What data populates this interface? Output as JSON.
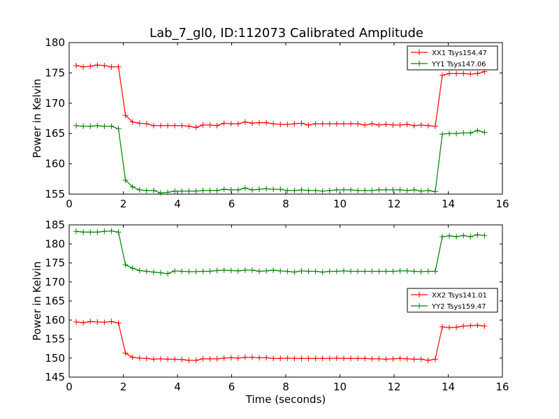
{
  "title": "Lab_7_gl0, ID:112073 Calibrated Amplitude",
  "colors": {
    "red": "#ff0000",
    "green": "#008000"
  },
  "chart_data": [
    {
      "type": "line",
      "ylabel": "Power in Kelvin",
      "xlabel": "",
      "xlim": [
        0,
        16
      ],
      "ylim": [
        155,
        180
      ],
      "x_ticks": [
        0,
        2,
        4,
        6,
        8,
        10,
        12,
        14,
        16
      ],
      "y_ticks": [
        155,
        160,
        165,
        170,
        175,
        180
      ],
      "legend_position": "top-right",
      "x": [
        0.26,
        0.52,
        0.78,
        1.04,
        1.3,
        1.56,
        1.82,
        2.08,
        2.34,
        2.6,
        2.86,
        3.12,
        3.38,
        3.64,
        3.9,
        4.16,
        4.42,
        4.68,
        4.94,
        5.2,
        5.46,
        5.72,
        5.98,
        6.24,
        6.5,
        6.76,
        7.02,
        7.28,
        7.54,
        7.8,
        8.06,
        8.32,
        8.58,
        8.84,
        9.1,
        9.36,
        9.62,
        9.88,
        10.14,
        10.4,
        10.66,
        10.92,
        11.18,
        11.44,
        11.7,
        11.96,
        12.22,
        12.48,
        12.74,
        13.0,
        13.26,
        13.52,
        13.78,
        14.04,
        14.3,
        14.56,
        14.82,
        15.08,
        15.34
      ],
      "series": [
        {
          "name": "XX1 Tsys154.47",
          "color": "#ff0000",
          "values": [
            176.2,
            176.0,
            176.1,
            176.3,
            176.2,
            176.0,
            176.0,
            168.0,
            166.9,
            166.7,
            166.6,
            166.3,
            166.3,
            166.3,
            166.3,
            166.3,
            166.2,
            166.0,
            166.4,
            166.4,
            166.3,
            166.7,
            166.6,
            166.6,
            166.9,
            166.7,
            166.8,
            166.8,
            166.6,
            166.5,
            166.5,
            166.6,
            166.7,
            166.4,
            166.6,
            166.6,
            166.6,
            166.6,
            166.6,
            166.6,
            166.6,
            166.4,
            166.6,
            166.4,
            166.5,
            166.4,
            166.4,
            166.5,
            166.3,
            166.4,
            166.3,
            166.2,
            174.6,
            174.9,
            174.9,
            174.9,
            174.8,
            174.9,
            175.2
          ]
        },
        {
          "name": "YY1 Tsys147.06",
          "color": "#008000",
          "values": [
            166.3,
            166.2,
            166.2,
            166.3,
            166.2,
            166.2,
            165.8,
            157.3,
            156.2,
            155.7,
            155.6,
            155.6,
            155.2,
            155.3,
            155.5,
            155.5,
            155.5,
            155.5,
            155.6,
            155.6,
            155.6,
            155.8,
            155.7,
            155.7,
            156.0,
            155.7,
            155.8,
            155.9,
            155.8,
            155.8,
            155.6,
            155.6,
            155.7,
            155.6,
            155.6,
            155.5,
            155.6,
            155.7,
            155.7,
            155.7,
            155.6,
            155.6,
            155.6,
            155.7,
            155.7,
            155.7,
            155.7,
            155.6,
            155.7,
            155.5,
            155.6,
            155.4,
            164.9,
            165.0,
            165.0,
            165.1,
            165.1,
            165.5,
            165.2
          ]
        }
      ]
    },
    {
      "type": "line",
      "ylabel": "Power in Kelvin",
      "xlabel": "Time (seconds)",
      "xlim": [
        0,
        16
      ],
      "ylim": [
        145,
        185
      ],
      "x_ticks": [
        0,
        2,
        4,
        6,
        8,
        10,
        12,
        14,
        16
      ],
      "y_ticks": [
        145,
        150,
        155,
        160,
        165,
        170,
        175,
        180,
        185
      ],
      "legend_position": "center-right",
      "x": [
        0.26,
        0.52,
        0.78,
        1.04,
        1.3,
        1.56,
        1.82,
        2.08,
        2.34,
        2.6,
        2.86,
        3.12,
        3.38,
        3.64,
        3.9,
        4.16,
        4.42,
        4.68,
        4.94,
        5.2,
        5.46,
        5.72,
        5.98,
        6.24,
        6.5,
        6.76,
        7.02,
        7.28,
        7.54,
        7.8,
        8.06,
        8.32,
        8.58,
        8.84,
        9.1,
        9.36,
        9.62,
        9.88,
        10.14,
        10.4,
        10.66,
        10.92,
        11.18,
        11.44,
        11.7,
        11.96,
        12.22,
        12.48,
        12.74,
        13.0,
        13.26,
        13.52,
        13.78,
        14.04,
        14.3,
        14.56,
        14.82,
        15.08,
        15.34
      ],
      "series": [
        {
          "name": "XX2 Tsys141.01",
          "color": "#ff0000",
          "values": [
            159.5,
            159.3,
            159.6,
            159.5,
            159.4,
            159.6,
            159.2,
            151.3,
            150.2,
            150.0,
            149.9,
            149.7,
            149.8,
            149.7,
            149.7,
            149.6,
            149.4,
            149.4,
            149.8,
            149.8,
            149.8,
            150.0,
            150.1,
            150.0,
            150.2,
            150.2,
            150.1,
            150.1,
            149.9,
            149.9,
            150.0,
            149.9,
            149.9,
            149.9,
            149.9,
            149.9,
            149.9,
            150.0,
            149.9,
            149.9,
            149.9,
            149.9,
            149.8,
            149.8,
            149.7,
            149.8,
            149.9,
            149.8,
            149.7,
            149.7,
            149.4,
            149.7,
            158.2,
            158.0,
            158.1,
            158.4,
            158.5,
            158.6,
            158.4
          ]
        },
        {
          "name": "YY2 Tsys159.47",
          "color": "#008000",
          "values": [
            183.3,
            183.1,
            183.1,
            183.1,
            183.3,
            183.4,
            183.1,
            174.5,
            173.6,
            173.0,
            172.8,
            172.6,
            172.4,
            172.2,
            172.9,
            172.8,
            172.7,
            172.7,
            172.8,
            172.8,
            173.0,
            173.1,
            173.0,
            172.9,
            173.1,
            173.1,
            172.8,
            172.9,
            173.1,
            172.9,
            172.8,
            172.6,
            172.9,
            172.8,
            172.8,
            172.6,
            172.8,
            172.8,
            172.9,
            172.8,
            172.8,
            172.8,
            172.8,
            172.8,
            172.8,
            172.8,
            172.9,
            172.9,
            172.8,
            172.7,
            172.8,
            172.8,
            181.9,
            182.1,
            181.9,
            182.2,
            181.9,
            182.4,
            182.2
          ]
        }
      ]
    }
  ]
}
